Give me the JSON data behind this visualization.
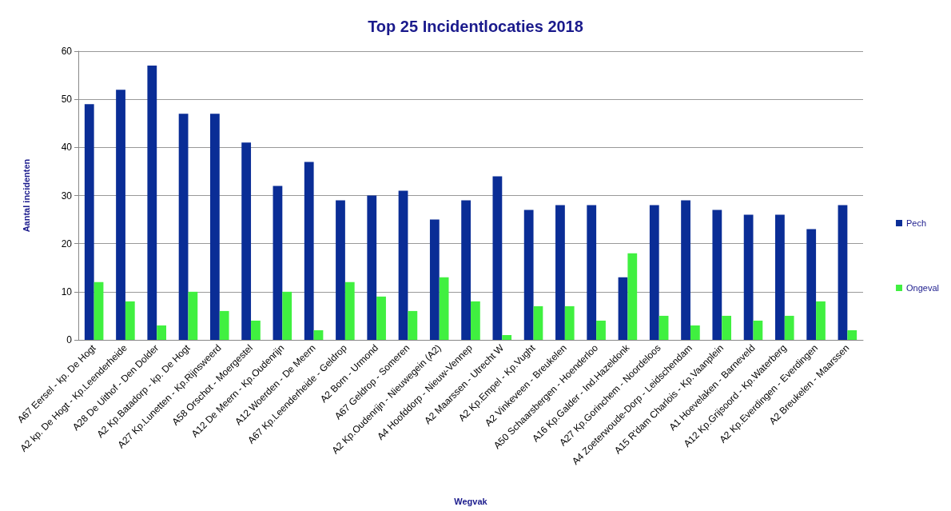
{
  "chart_data": {
    "type": "bar",
    "title": "Top 25 Incidentlocaties 2018",
    "xlabel": "Wegvak",
    "ylabel": "Aantal incidenten",
    "categories": [
      "A67 Eersel - kp. De Hogt",
      "A2 kp. De Hogt - Kp.Leenderheide",
      "A28 De Uithof - Den Dolder",
      "A2 Kp.Batadorp - kp. De Hogt",
      "A27 Kp.Lunetten - Kp.Rijnsweerd",
      "A58 Orschot - Moergestel",
      "A12 De Meern - Kp.Oudenrijn",
      "A12 Woerden - De Meern",
      "A67 Kp.Leenderheide - Geldrop",
      "A2 Born - Urmond",
      "A67 Geldrop - Someren",
      "A2 Kp.Oudenrijn - Nieuwegein (A2)",
      "A4 Hoofddorp - Nieuw-Vennep",
      "A2 Maarssen - Utrecht W",
      "A2 Kp.Empel - Kp.Vught",
      "A2 Vinkeveen - Breukelen",
      "A50 Schaarsbergen - Hoenderloo",
      "A16 Kp.Galder - Ind.Hazeldonk",
      "A27 Kp.Gorinchem - Noordeloos",
      "A4 Zoeterwoude-Dorp - Leidschendam",
      "A15 R'dam Charlois - Kp.Vaanplein",
      "A1 Hoevelaken - Barneveld",
      "A12 Kp.Grijsoord - Kp.Waterberg",
      "A2 Kp.Everdingen - Everdingen",
      "A2 Breukelen - Maarssen"
    ],
    "series": [
      {
        "name": "Pech",
        "color": "#0a2d96",
        "values": [
          49,
          52,
          57,
          47,
          47,
          41,
          32,
          37,
          29,
          30,
          31,
          25,
          29,
          34,
          27,
          28,
          28,
          13,
          28,
          29,
          27,
          26,
          26,
          23,
          28
        ]
      },
      {
        "name": "Ongeval",
        "color": "#40f040",
        "values": [
          12,
          8,
          3,
          10,
          6,
          4,
          10,
          2,
          12,
          9,
          6,
          13,
          8,
          1,
          7,
          7,
          4,
          18,
          5,
          3,
          5,
          4,
          5,
          8,
          2
        ]
      }
    ],
    "ylim": [
      0,
      60
    ],
    "yticks": [
      0,
      10,
      20,
      30,
      40,
      50,
      60
    ],
    "grid": "y",
    "legend": "right"
  }
}
